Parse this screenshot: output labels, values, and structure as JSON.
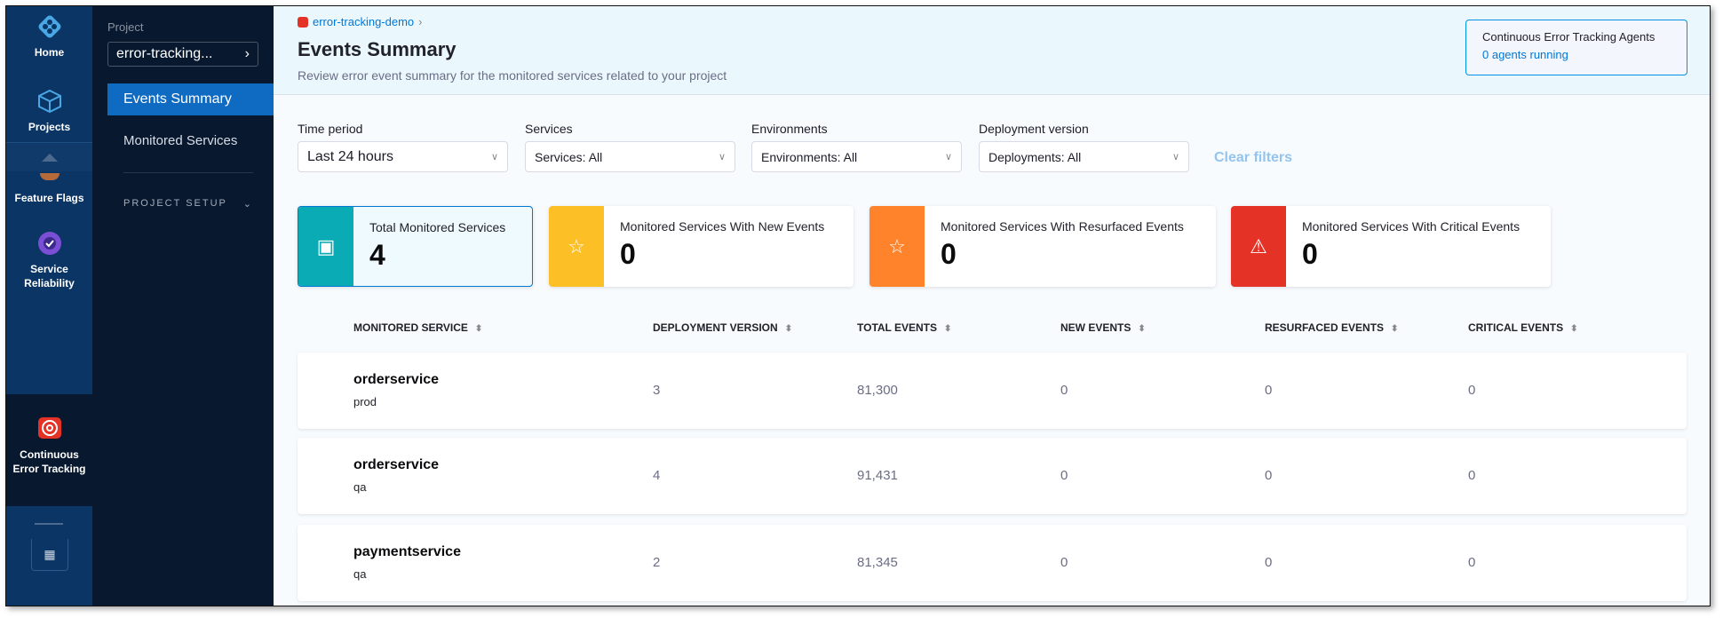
{
  "nav": {
    "items": [
      {
        "label": "Home",
        "icon": "harness-logo-icon"
      },
      {
        "label": "Projects",
        "icon": "cube-icon"
      },
      {
        "label": "Feature Flags",
        "icon": "feature-flags-icon"
      },
      {
        "label": "Service Reliability",
        "icon": "service-reliability-icon"
      },
      {
        "label": "Continuous Error Tracking",
        "icon": "error-tracking-icon",
        "active": true
      }
    ]
  },
  "project": {
    "label": "Project",
    "value": "error-tracking...",
    "menu": [
      {
        "label": "Events Summary",
        "active": true
      },
      {
        "label": "Monitored Services"
      }
    ],
    "setup": "PROJECT SETUP"
  },
  "header": {
    "breadcrumb": "error-tracking-demo",
    "title": "Events Summary",
    "subtitle": "Review error event summary for the monitored services related to your project",
    "agents_title": "Continuous Error Tracking Agents",
    "agents_link": "0 agents running"
  },
  "filters": [
    {
      "label": "Time period",
      "value": "Last 24 hours"
    },
    {
      "label": "Services",
      "value": "Services: All"
    },
    {
      "label": "Environments",
      "value": "Environments: All"
    },
    {
      "label": "Deployment version",
      "value": "Deployments: All"
    }
  ],
  "clear_filters": "Clear filters",
  "cards": [
    {
      "title": "Total Monitored Services",
      "value": "4",
      "color": "#0aabb4"
    },
    {
      "title": "Monitored Services With New Events",
      "value": "0",
      "color": "#fcbf26"
    },
    {
      "title": "Monitored Services With Resurfaced Events",
      "value": "0",
      "color": "#ff832b"
    },
    {
      "title": "Monitored Services With Critical Events",
      "value": "0",
      "color": "#e43326"
    }
  ],
  "table": {
    "columns": [
      "MONITORED SERVICE",
      "DEPLOYMENT VERSION",
      "TOTAL EVENTS",
      "NEW EVENTS",
      "RESURFACED EVENTS",
      "CRITICAL EVENTS"
    ],
    "rows": [
      {
        "service": "orderservice",
        "env": "prod",
        "version": "3",
        "total": "81,300",
        "new": "0",
        "resurfaced": "0",
        "critical": "0"
      },
      {
        "service": "orderservice",
        "env": "qa",
        "version": "4",
        "total": "91,431",
        "new": "0",
        "resurfaced": "0",
        "critical": "0"
      },
      {
        "service": "paymentservice",
        "env": "qa",
        "version": "2",
        "total": "81,345",
        "new": "0",
        "resurfaced": "0",
        "critical": "0"
      }
    ]
  }
}
